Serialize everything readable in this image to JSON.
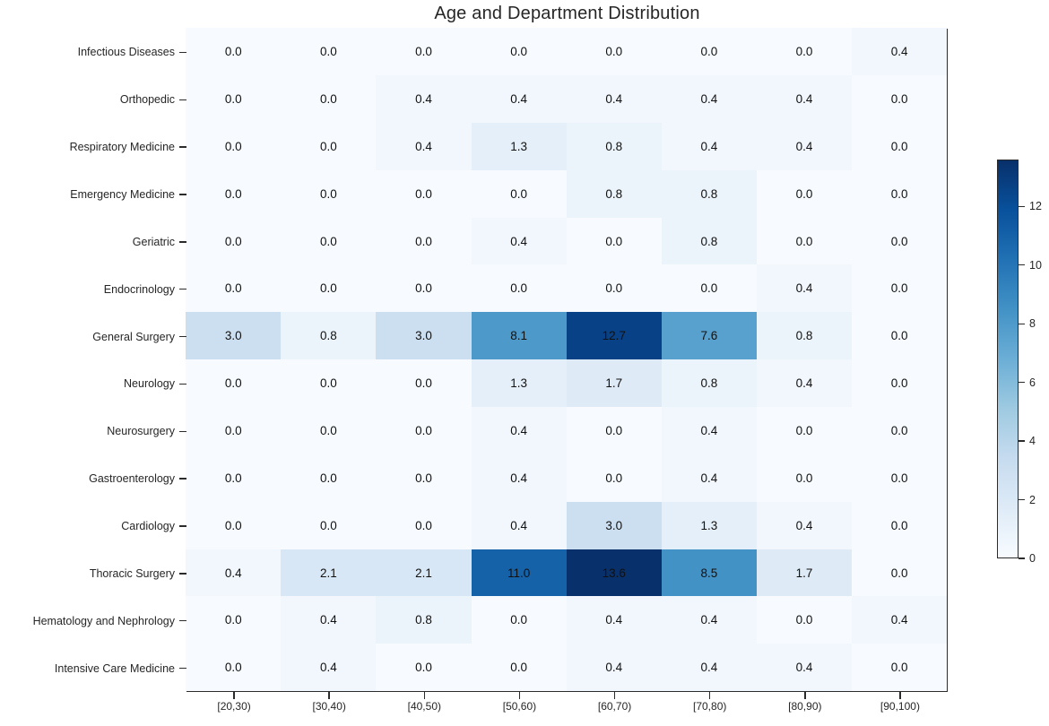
{
  "figure": {
    "background": "#ffffff",
    "spine_color": "#2b2b2b"
  },
  "chart_data": {
    "type": "heatmap",
    "title": "Age and Department Distribution",
    "rows": [
      "Infectious Diseases",
      "Orthopedic",
      "Respiratory Medicine",
      "Emergency Medicine",
      "Geriatric",
      "Endocrinology",
      "General Surgery",
      "Neurology",
      "Neurosurgery",
      "Gastroenterology",
      "Cardiology",
      "Thoracic Surgery",
      "Hematology and Nephrology",
      "Intensive Care Medicine"
    ],
    "columns": [
      "[20,30)",
      "[30,40)",
      "[40,50)",
      "[50,60)",
      "[60,70)",
      "[70,80)",
      "[80,90)",
      "[90,100)"
    ],
    "values": [
      [
        0.0,
        0.0,
        0.0,
        0.0,
        0.0,
        0.0,
        0.0,
        0.4
      ],
      [
        0.0,
        0.0,
        0.4,
        0.4,
        0.4,
        0.4,
        0.4,
        0.0
      ],
      [
        0.0,
        0.0,
        0.4,
        1.3,
        0.8,
        0.4,
        0.4,
        0.0
      ],
      [
        0.0,
        0.0,
        0.0,
        0.0,
        0.8,
        0.8,
        0.0,
        0.0
      ],
      [
        0.0,
        0.0,
        0.0,
        0.4,
        0.0,
        0.8,
        0.0,
        0.0
      ],
      [
        0.0,
        0.0,
        0.0,
        0.0,
        0.0,
        0.0,
        0.4,
        0.0
      ],
      [
        3.0,
        0.8,
        3.0,
        8.1,
        12.7,
        7.6,
        0.8,
        0.0
      ],
      [
        0.0,
        0.0,
        0.0,
        1.3,
        1.7,
        0.8,
        0.4,
        0.0
      ],
      [
        0.0,
        0.0,
        0.0,
        0.4,
        0.0,
        0.4,
        0.0,
        0.0
      ],
      [
        0.0,
        0.0,
        0.0,
        0.4,
        0.0,
        0.4,
        0.0,
        0.0
      ],
      [
        0.0,
        0.0,
        0.0,
        0.4,
        3.0,
        1.3,
        0.4,
        0.0
      ],
      [
        0.4,
        2.1,
        2.1,
        11.0,
        13.6,
        8.5,
        1.7,
        0.0
      ],
      [
        0.0,
        0.4,
        0.8,
        0.0,
        0.4,
        0.4,
        0.0,
        0.4
      ],
      [
        0.0,
        0.4,
        0.0,
        0.0,
        0.4,
        0.4,
        0.4,
        0.0
      ]
    ],
    "vmin": 0,
    "vmax": 13.6,
    "value_decimals": 1,
    "annotation_color": "#111111",
    "colormap": "Blues",
    "colormap_stops": [
      "#f7fbff",
      "#deebf7",
      "#c6dbef",
      "#9ecae1",
      "#6baed6",
      "#4292c6",
      "#2171b5",
      "#08519c",
      "#08306b"
    ],
    "colorbar_ticks": [
      0,
      2,
      4,
      6,
      8,
      10,
      12
    ],
    "colorbar_position": "right",
    "grid": false,
    "xlabel": "",
    "ylabel": ""
  }
}
